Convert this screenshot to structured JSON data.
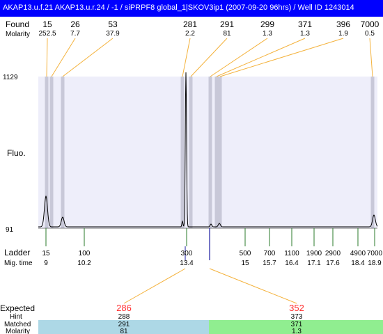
{
  "title": "AKAP13.u.f.21  AKAP13.u.r.24 / -1 / siPRPF8 global_1|SKOV3ip1 (2007-09-20 96hrs) / Well ID 1243014",
  "labels": {
    "found": "Found",
    "molarity": "Molarity",
    "fluo": "Fluo.",
    "ladder": "Ladder",
    "mig_time": "Mig. time",
    "expected": "Expected",
    "hint": "Hint",
    "matched": "Matched",
    "molarity_bottom": "Molarity"
  },
  "colors": {
    "title_bg": "#0000ff",
    "plot_bg": "#eeeefa",
    "band": "#c8c8d8",
    "orange": "#f4b23c",
    "ladder_tick": "#2a7a2a",
    "blue": "#1a1aa0",
    "expected_red": "#ff3030",
    "left_panel": "#add8e6",
    "right_panel": "#90ee90"
  },
  "chart_data": {
    "type": "line",
    "y_axis": {
      "top_label": "1129",
      "bottom_label": "91"
    },
    "found_peaks": [
      {
        "found": "15",
        "molarity": "252.5",
        "x": 15
      },
      {
        "found": "26",
        "molarity": "7.7",
        "x": 26
      },
      {
        "found": "53",
        "molarity": "37.9",
        "x": 53
      },
      {
        "found": "281",
        "molarity": "2.2",
        "x": 281
      },
      {
        "found": "291",
        "molarity": "81",
        "x": 291
      },
      {
        "found": "299",
        "molarity": "1.3",
        "x": 299
      },
      {
        "found": "371",
        "molarity": "1.3",
        "x": 371
      },
      {
        "found": "396",
        "molarity": "1.9",
        "x": 396
      },
      {
        "found": "7000",
        "molarity": "0.5",
        "x": 7000
      }
    ],
    "ladder": [
      {
        "size": "15",
        "time": "9"
      },
      {
        "size": "100",
        "time": "10.2"
      },
      {
        "size": "300",
        "time": "13.4"
      },
      {
        "size": "500",
        "time": "15"
      },
      {
        "size": "700",
        "time": "15.7"
      },
      {
        "size": "1100",
        "time": "16.4"
      },
      {
        "size": "1900",
        "time": "17.1"
      },
      {
        "size": "2900",
        "time": "17.6"
      },
      {
        "size": "4900",
        "time": "18.4"
      },
      {
        "size": "7000",
        "time": "18.9"
      }
    ],
    "expected": [
      {
        "expected": "286",
        "hint": "288",
        "matched": "291",
        "molarity": "81"
      },
      {
        "expected": "352",
        "hint": "373",
        "matched": "371",
        "molarity": "1.3"
      }
    ]
  }
}
